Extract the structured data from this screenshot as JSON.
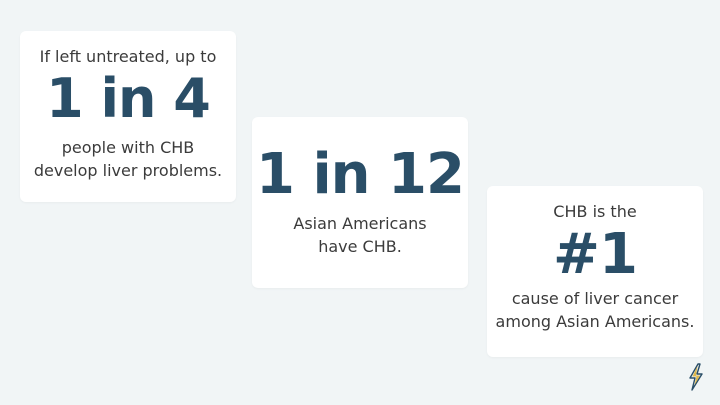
{
  "cards": [
    {
      "intro": "If left untreated, up to",
      "stat": "1 in 4",
      "line1": "people with CHB",
      "line2": "develop liver problems."
    },
    {
      "stat": "1 in 12",
      "line1": "Asian Americans",
      "line2": "have CHB."
    },
    {
      "intro": "CHB is the",
      "stat": "#1",
      "line1": "cause of liver cancer",
      "line2": "among Asian Americans."
    }
  ],
  "logo": {
    "icon": "lightning-bolt-icon",
    "colors": [
      "#2a4e67",
      "#e0b84a"
    ]
  }
}
